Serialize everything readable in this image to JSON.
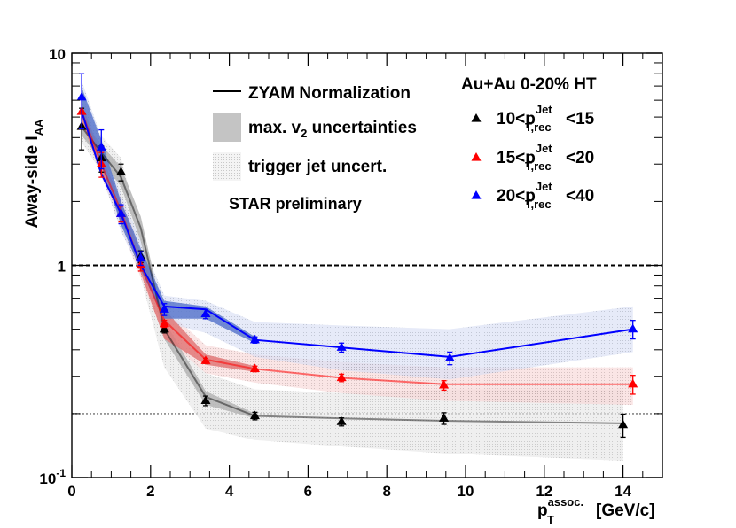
{
  "chart_data": {
    "type": "scatter",
    "yscale": "log",
    "xlim": [
      0,
      15
    ],
    "ylim": [
      0.1,
      10
    ],
    "xlabel_main": "p",
    "xlabel_sup": "assoc.",
    "xlabel_sub": "T",
    "xlabel_unit": "[GeV/c]",
    "ylabel_main": "Away-side I",
    "ylabel_sub": "AA",
    "xticks": [
      {
        "value": 0,
        "label": "0"
      },
      {
        "value": 2,
        "label": "2"
      },
      {
        "value": 4,
        "label": "4"
      },
      {
        "value": 6,
        "label": "6"
      },
      {
        "value": 8,
        "label": "8"
      },
      {
        "value": 10,
        "label": "10"
      },
      {
        "value": 12,
        "label": "12"
      },
      {
        "value": 14,
        "label": "14"
      }
    ],
    "yticks": [
      {
        "value": 0.1,
        "base": "10",
        "exp": "-1"
      },
      {
        "value": 1,
        "base": "1",
        "exp": ""
      },
      {
        "value": 10,
        "base": "10",
        "exp": ""
      }
    ],
    "reference_lines": [
      {
        "y": 1.0,
        "style": "dashed",
        "color": "#000000"
      },
      {
        "y": 0.2,
        "style": "dotted",
        "color": "#888888"
      }
    ],
    "series": [
      {
        "name": "10<p_T,rec^Jet<15",
        "label_pre": "10<p",
        "label_sup": "Jet",
        "label_sub": "T,rec",
        "label_post": "<15",
        "color": "#000000",
        "v2_band_color": "#b4b4b4",
        "trig_band_color": "#c8c8c8",
        "points": [
          {
            "x": 0.25,
            "y": 4.5,
            "err": 1.0
          },
          {
            "x": 0.75,
            "y": 3.2,
            "err": 0.45
          },
          {
            "x": 1.25,
            "y": 2.75,
            "err": 0.25
          },
          {
            "x": 1.75,
            "y": 1.1,
            "err": 0.07
          },
          {
            "x": 2.35,
            "y": 0.5,
            "err": 0.02
          },
          {
            "x": 3.4,
            "y": 0.23,
            "err": 0.012
          },
          {
            "x": 4.65,
            "y": 0.195,
            "err": 0.008
          },
          {
            "x": 6.85,
            "y": 0.183,
            "err": 0.008
          },
          {
            "x": 9.45,
            "y": 0.19,
            "err": 0.012
          },
          {
            "x": 14.0,
            "y": 0.177,
            "err": 0.022
          }
        ],
        "line": [
          {
            "x": 0.25,
            "y": 4.5
          },
          {
            "x": 0.75,
            "y": 3.4
          },
          {
            "x": 1.25,
            "y": 2.6
          },
          {
            "x": 1.75,
            "y": 1.5
          },
          {
            "x": 2.35,
            "y": 0.5
          },
          {
            "x": 3.4,
            "y": 0.24
          },
          {
            "x": 4.65,
            "y": 0.195
          },
          {
            "x": 6.85,
            "y": 0.19
          },
          {
            "x": 9.45,
            "y": 0.185
          },
          {
            "x": 14.0,
            "y": 0.18
          }
        ],
        "v2_band": [
          {
            "x": 0.25,
            "lo": 4.1,
            "hi": 4.9
          },
          {
            "x": 0.75,
            "lo": 3.1,
            "hi": 3.7
          },
          {
            "x": 1.25,
            "lo": 2.35,
            "hi": 2.9
          },
          {
            "x": 1.75,
            "lo": 1.3,
            "hi": 1.7
          },
          {
            "x": 2.35,
            "lo": 0.45,
            "hi": 0.55
          },
          {
            "x": 3.4,
            "lo": 0.22,
            "hi": 0.255
          },
          {
            "x": 4.65,
            "lo": 0.19,
            "hi": 0.2
          }
        ],
        "trig_band": [
          {
            "x": 0.25,
            "lo": 3.8,
            "hi": 5.2
          },
          {
            "x": 1.25,
            "lo": 2.0,
            "hi": 3.2
          },
          {
            "x": 2.35,
            "lo": 0.33,
            "hi": 0.52
          },
          {
            "x": 3.4,
            "lo": 0.17,
            "hi": 0.31
          },
          {
            "x": 4.65,
            "lo": 0.15,
            "hi": 0.26
          },
          {
            "x": 6.85,
            "lo": 0.14,
            "hi": 0.25
          },
          {
            "x": 9.45,
            "lo": 0.13,
            "hi": 0.26
          },
          {
            "x": 14.0,
            "lo": 0.12,
            "hi": 0.26
          }
        ]
      },
      {
        "name": "15<p_T,rec^Jet<20",
        "label_pre": "15<p",
        "label_sup": "Jet",
        "label_sub": "T,rec",
        "label_post": "<20",
        "color": "#ff0000",
        "v2_band_color": "#e07878",
        "trig_band_color": "#f0a6a6",
        "points": [
          {
            "x": 0.25,
            "y": 5.3,
            "err": 0.9
          },
          {
            "x": 0.75,
            "y": 3.0,
            "err": 0.4
          },
          {
            "x": 1.25,
            "y": 1.75,
            "err": 0.15
          },
          {
            "x": 1.75,
            "y": 1.0,
            "err": 0.06
          },
          {
            "x": 2.35,
            "y": 0.53,
            "err": 0.02
          },
          {
            "x": 3.4,
            "y": 0.355,
            "err": 0.01
          },
          {
            "x": 4.65,
            "y": 0.325,
            "err": 0.01
          },
          {
            "x": 6.85,
            "y": 0.295,
            "err": 0.012
          },
          {
            "x": 9.45,
            "y": 0.272,
            "err": 0.014
          },
          {
            "x": 14.25,
            "y": 0.275,
            "err": 0.028
          }
        ],
        "line": [
          {
            "x": 0.25,
            "y": 5.3
          },
          {
            "x": 0.75,
            "y": 3.0
          },
          {
            "x": 1.25,
            "y": 1.8
          },
          {
            "x": 1.75,
            "y": 1.0
          },
          {
            "x": 2.35,
            "y": 0.55
          },
          {
            "x": 3.4,
            "y": 0.36
          },
          {
            "x": 4.65,
            "y": 0.325
          },
          {
            "x": 6.85,
            "y": 0.295
          },
          {
            "x": 9.45,
            "y": 0.275
          },
          {
            "x": 14.25,
            "y": 0.275
          }
        ],
        "v2_band": [
          {
            "x": 0.25,
            "lo": 4.8,
            "hi": 5.8
          },
          {
            "x": 0.75,
            "lo": 2.7,
            "hi": 3.3
          },
          {
            "x": 1.25,
            "lo": 1.65,
            "hi": 2.0
          },
          {
            "x": 1.75,
            "lo": 0.92,
            "hi": 1.15
          },
          {
            "x": 2.35,
            "lo": 0.45,
            "hi": 0.62
          },
          {
            "x": 3.4,
            "lo": 0.34,
            "hi": 0.38
          },
          {
            "x": 4.65,
            "lo": 0.315,
            "hi": 0.335
          }
        ],
        "trig_band": [
          {
            "x": 0.25,
            "lo": 4.6,
            "hi": 6.0
          },
          {
            "x": 1.25,
            "lo": 1.5,
            "hi": 2.1
          },
          {
            "x": 2.35,
            "lo": 0.46,
            "hi": 0.63
          },
          {
            "x": 3.4,
            "lo": 0.31,
            "hi": 0.42
          },
          {
            "x": 4.65,
            "lo": 0.28,
            "hi": 0.38
          },
          {
            "x": 6.85,
            "lo": 0.25,
            "hi": 0.35
          },
          {
            "x": 9.45,
            "lo": 0.23,
            "hi": 0.33
          },
          {
            "x": 14.25,
            "lo": 0.22,
            "hi": 0.33
          }
        ]
      },
      {
        "name": "20<p_T,rec^Jet<40",
        "label_pre": "20<p",
        "label_sup": "Jet",
        "label_sub": "T,rec",
        "label_post": "<40",
        "color": "#0000ff",
        "v2_band_color": "#5a78cc",
        "trig_band_color": "#a8b8e6",
        "points": [
          {
            "x": 0.25,
            "y": 6.2,
            "err": 1.8
          },
          {
            "x": 0.75,
            "y": 3.6,
            "err": 0.75
          },
          {
            "x": 1.25,
            "y": 1.75,
            "err": 0.18
          },
          {
            "x": 1.75,
            "y": 1.08,
            "err": 0.08
          },
          {
            "x": 2.35,
            "y": 0.62,
            "err": 0.04
          },
          {
            "x": 3.4,
            "y": 0.59,
            "err": 0.03
          },
          {
            "x": 4.65,
            "y": 0.445,
            "err": 0.015
          },
          {
            "x": 6.85,
            "y": 0.41,
            "err": 0.02
          },
          {
            "x": 9.6,
            "y": 0.365,
            "err": 0.025
          },
          {
            "x": 14.25,
            "y": 0.5,
            "err": 0.05
          }
        ],
        "line": [
          {
            "x": 0.25,
            "y": 5.3
          },
          {
            "x": 0.75,
            "y": 2.7
          },
          {
            "x": 1.25,
            "y": 1.75
          },
          {
            "x": 1.75,
            "y": 1.0
          },
          {
            "x": 2.35,
            "y": 0.64
          },
          {
            "x": 3.4,
            "y": 0.62
          },
          {
            "x": 4.65,
            "y": 0.445
          },
          {
            "x": 6.85,
            "y": 0.41
          },
          {
            "x": 9.6,
            "y": 0.37
          },
          {
            "x": 14.25,
            "y": 0.5
          }
        ],
        "v2_band": [
          {
            "x": 0.25,
            "lo": 5.2,
            "hi": 6.9
          },
          {
            "x": 0.75,
            "lo": 3.0,
            "hi": 3.9
          },
          {
            "x": 1.25,
            "lo": 1.55,
            "hi": 2.0
          },
          {
            "x": 1.75,
            "lo": 0.95,
            "hi": 1.2
          },
          {
            "x": 2.35,
            "lo": 0.56,
            "hi": 0.68
          },
          {
            "x": 3.4,
            "lo": 0.56,
            "hi": 0.64
          },
          {
            "x": 4.65,
            "lo": 0.43,
            "hi": 0.46
          }
        ],
        "trig_band": [
          {
            "x": 0.25,
            "lo": 5.0,
            "hi": 7.4
          },
          {
            "x": 1.25,
            "lo": 1.45,
            "hi": 2.15
          },
          {
            "x": 2.35,
            "lo": 0.54,
            "hi": 0.72
          },
          {
            "x": 3.4,
            "lo": 0.48,
            "hi": 0.68
          },
          {
            "x": 4.65,
            "lo": 0.37,
            "hi": 0.54
          },
          {
            "x": 6.85,
            "lo": 0.32,
            "hi": 0.52
          },
          {
            "x": 9.6,
            "lo": 0.29,
            "hi": 0.5
          },
          {
            "x": 14.25,
            "lo": 0.39,
            "hi": 0.64
          }
        ]
      }
    ],
    "legend_left": {
      "zyam": "ZYAM Normalization",
      "v2_pre": "max. v",
      "v2_sub": "2",
      "v2_post": " uncertainties",
      "trigger": "trigger jet uncert.",
      "star": "STAR preliminary"
    },
    "legend_right_title": "Au+Au 0-20% HT"
  }
}
